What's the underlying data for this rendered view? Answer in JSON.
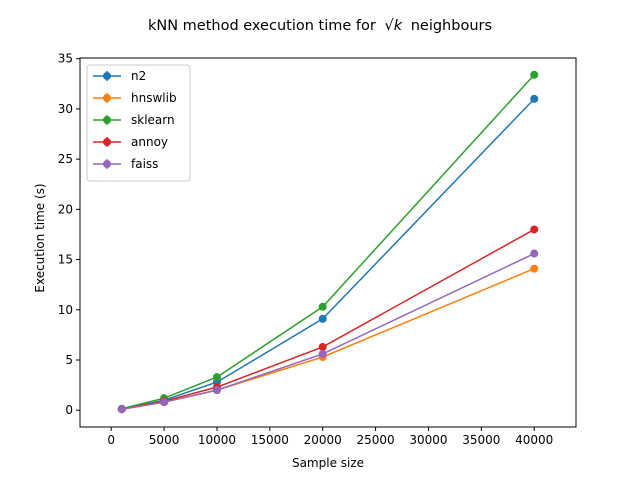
{
  "chart_data": {
    "type": "line",
    "title": "kNN method execution time for",
    "title_math": "k",
    "title_suffix": "neighbours",
    "xlabel": "Sample size",
    "ylabel": "Execution time (s)",
    "xlim": [
      -2950,
      43950
    ],
    "ylim": [
      -1.67,
      35.07
    ],
    "xticks": [
      0,
      5000,
      10000,
      15000,
      20000,
      25000,
      30000,
      35000,
      40000
    ],
    "yticks": [
      0,
      5,
      10,
      15,
      20,
      25,
      30,
      35
    ],
    "x": [
      1000,
      5000,
      10000,
      20000,
      40000
    ],
    "grid": false,
    "legend_position": "top-left",
    "series": [
      {
        "name": "n2",
        "color": "#1f77b4",
        "values": [
          0.1,
          1.0,
          2.8,
          9.1,
          31.0
        ]
      },
      {
        "name": "hnswlib",
        "color": "#ff7f0e",
        "values": [
          0.1,
          0.8,
          2.0,
          5.3,
          14.1
        ]
      },
      {
        "name": "sklearn",
        "color": "#2ca02c",
        "values": [
          0.15,
          1.2,
          3.3,
          10.3,
          33.4
        ]
      },
      {
        "name": "annoy",
        "color": "#d62728",
        "values": [
          0.1,
          0.9,
          2.3,
          6.3,
          18.0
        ]
      },
      {
        "name": "faiss",
        "color": "#9467bd",
        "values": [
          0.1,
          0.8,
          2.0,
          5.6,
          15.6
        ]
      }
    ]
  }
}
